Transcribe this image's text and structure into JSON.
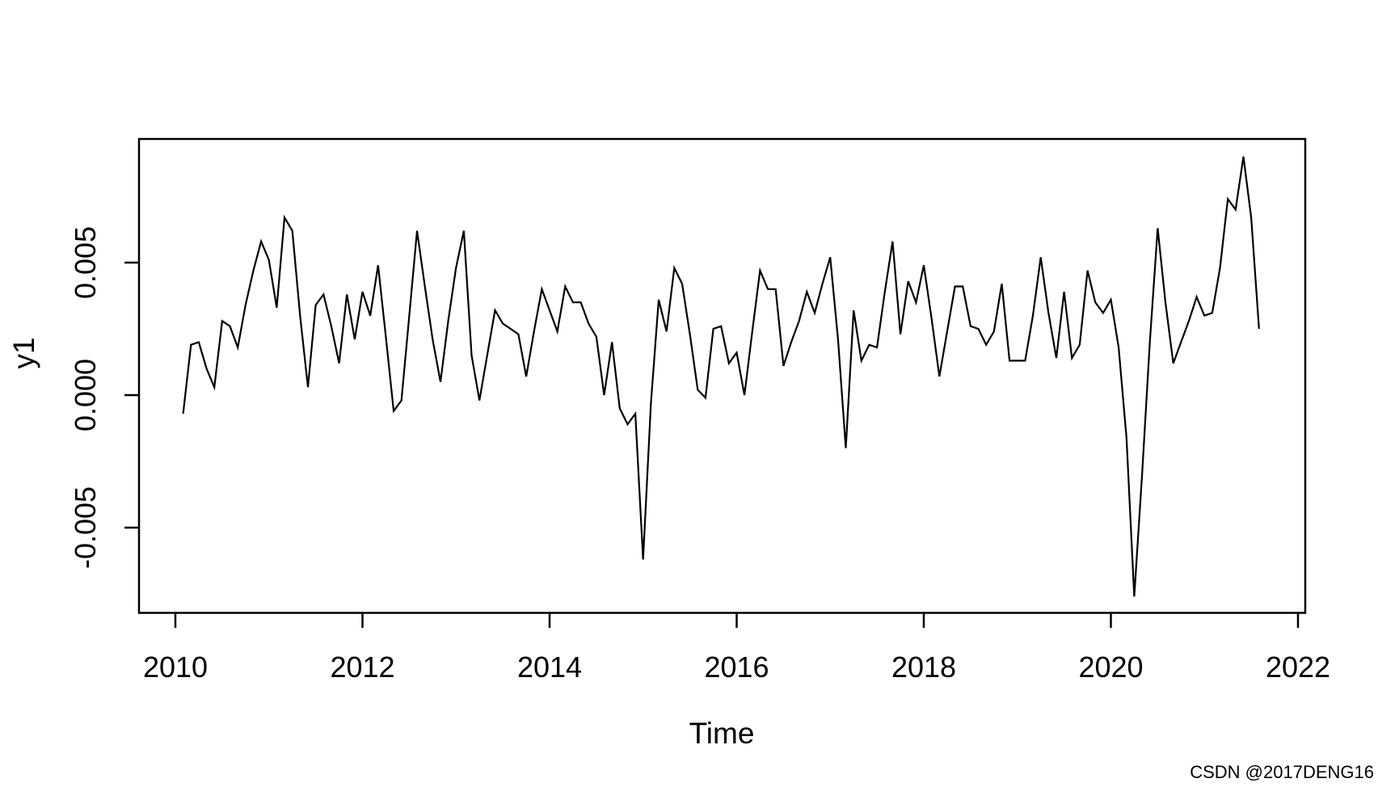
{
  "page": {
    "background": "#ffffff",
    "watermark_text": "CSDN @2017DENG16",
    "watermark_color": "#c9c9c9"
  },
  "chart_data": {
    "type": "line",
    "title": "",
    "xlabel": "Time",
    "ylabel": "y1",
    "line_color": "#000000",
    "grid": false,
    "legend": "none",
    "xlim": [
      2009.61,
      2022.08
    ],
    "ylim": [
      -0.00822,
      0.00966
    ],
    "x_ticks": [
      {
        "value": 2010,
        "label": "2010"
      },
      {
        "value": 2012,
        "label": "2012"
      },
      {
        "value": 2014,
        "label": "2014"
      },
      {
        "value": 2016,
        "label": "2016"
      },
      {
        "value": 2018,
        "label": "2018"
      },
      {
        "value": 2020,
        "label": "2020"
      },
      {
        "value": 2022,
        "label": "2022"
      }
    ],
    "y_ticks": [
      {
        "value": 0.005,
        "label": "0.005"
      },
      {
        "value": 0.0,
        "label": "0.000"
      },
      {
        "value": -0.005,
        "label": "-0.005"
      }
    ],
    "x_start": 2010.0833,
    "frequency": 12,
    "series_name": "y1",
    "values": [
      -0.0007,
      0.0019,
      0.002,
      0.001,
      0.0003,
      0.0028,
      0.0026,
      0.0018,
      0.0034,
      0.0047,
      0.0058,
      0.0051,
      0.0033,
      0.0067,
      0.0062,
      0.003,
      0.0003,
      0.0034,
      0.0038,
      0.0026,
      0.0012,
      0.0038,
      0.0021,
      0.0039,
      0.003,
      0.0049,
      0.0022,
      -0.0006,
      -0.0002,
      0.003,
      0.0062,
      0.0041,
      0.0021,
      0.0005,
      0.0028,
      0.0048,
      0.0062,
      0.0015,
      -0.0002,
      0.0015,
      0.0032,
      0.0027,
      0.0025,
      0.0023,
      0.0007,
      0.0024,
      0.004,
      0.0032,
      0.0024,
      0.0041,
      0.0035,
      0.0035,
      0.0027,
      0.0022,
      0.0,
      0.002,
      -0.0005,
      -0.0011,
      -0.0007,
      -0.0062,
      -0.0003,
      0.0036,
      0.0024,
      0.0048,
      0.0042,
      0.0023,
      0.0002,
      -0.0001,
      0.0025,
      0.0026,
      0.0012,
      0.0016,
      0.0,
      0.0024,
      0.0047,
      0.004,
      0.004,
      0.0011,
      0.002,
      0.0028,
      0.0039,
      0.0031,
      0.0042,
      0.0052,
      0.0021,
      -0.002,
      0.0032,
      0.0013,
      0.0019,
      0.0018,
      0.0039,
      0.0058,
      0.0023,
      0.0043,
      0.0035,
      0.0049,
      0.0029,
      0.0007,
      0.0024,
      0.0041,
      0.0041,
      0.0026,
      0.0025,
      0.0019,
      0.0024,
      0.0042,
      0.0013,
      0.0013,
      0.0013,
      0.003,
      0.0052,
      0.0031,
      0.0014,
      0.0039,
      0.0014,
      0.0019,
      0.0047,
      0.0035,
      0.0031,
      0.0036,
      0.0018,
      -0.0016,
      -0.0076,
      -0.003,
      0.002,
      0.0063,
      0.0035,
      0.0012,
      0.002,
      0.0028,
      0.0037,
      0.003,
      0.0031,
      0.0048,
      0.0074,
      0.007,
      0.009,
      0.0067,
      0.0025
    ]
  }
}
